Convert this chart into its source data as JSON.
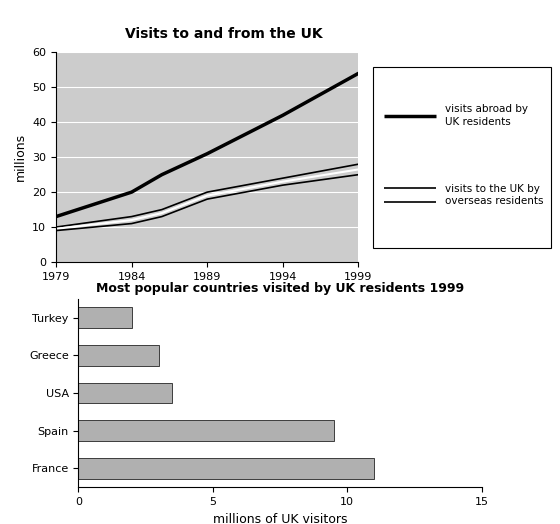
{
  "top_title": "Visits to and from the UK",
  "bottom_title": "Most popular countries visited by UK residents 1999",
  "line_years": [
    1979,
    1984,
    1986,
    1989,
    1994,
    1999
  ],
  "visits_abroad": [
    13,
    20,
    25,
    31,
    42,
    54
  ],
  "visits_to_uk_upper": [
    10,
    13,
    15,
    20,
    24,
    28
  ],
  "visits_to_uk_mid": [
    9.5,
    12,
    14,
    19,
    23,
    26.5
  ],
  "visits_to_uk_lower": [
    9,
    11,
    13,
    18,
    22,
    25
  ],
  "line_ylabel": "millions",
  "line_ylim": [
    0,
    60
  ],
  "line_xlim": [
    1979,
    1999
  ],
  "line_xticks": [
    1979,
    1984,
    1989,
    1994,
    1999
  ],
  "line_yticks": [
    0,
    10,
    20,
    30,
    40,
    50,
    60
  ],
  "bar_countries": [
    "Turkey",
    "Greece",
    "USA",
    "Spain",
    "France"
  ],
  "bar_values": [
    2.0,
    3.0,
    3.5,
    9.5,
    11.0
  ],
  "bar_xlabel": "millions of UK visitors",
  "bar_xlim": [
    0,
    15
  ],
  "bar_xticks": [
    0,
    5,
    10,
    15
  ],
  "bar_color": "#b0b0b0",
  "background_color": "#cccccc",
  "legend_label1": "visits abroad by\nUK residents",
  "legend_label2": "visits to the UK by\noverseas residents"
}
